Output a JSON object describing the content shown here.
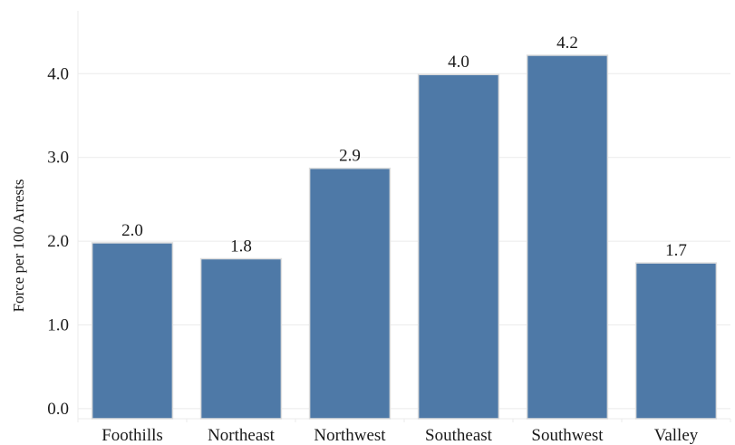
{
  "chart_data": {
    "type": "bar",
    "title": "",
    "xlabel": "",
    "ylabel": "Force per 100 Arrests",
    "categories": [
      "Foothills",
      "Northeast",
      "Northwest",
      "Southeast",
      "Southwest",
      "Valley"
    ],
    "values": [
      1.98,
      1.79,
      2.87,
      3.99,
      4.22,
      1.74
    ],
    "data_labels": [
      "2.0",
      "1.8",
      "2.9",
      "4.0",
      "4.2",
      "1.7"
    ],
    "yticks": [
      0.0,
      1.0,
      2.0,
      3.0,
      4.0
    ],
    "ytick_labels": [
      "0.0",
      "1.0",
      "2.0",
      "3.0",
      "4.0"
    ],
    "ylim": [
      -0.12,
      4.75
    ],
    "grid": true,
    "legend": "none",
    "colors": {
      "bar_fill": "#4e79a7",
      "bar_edge": "#dddddd",
      "grid": "#ebebeb",
      "text": "#1a1a1a"
    }
  }
}
